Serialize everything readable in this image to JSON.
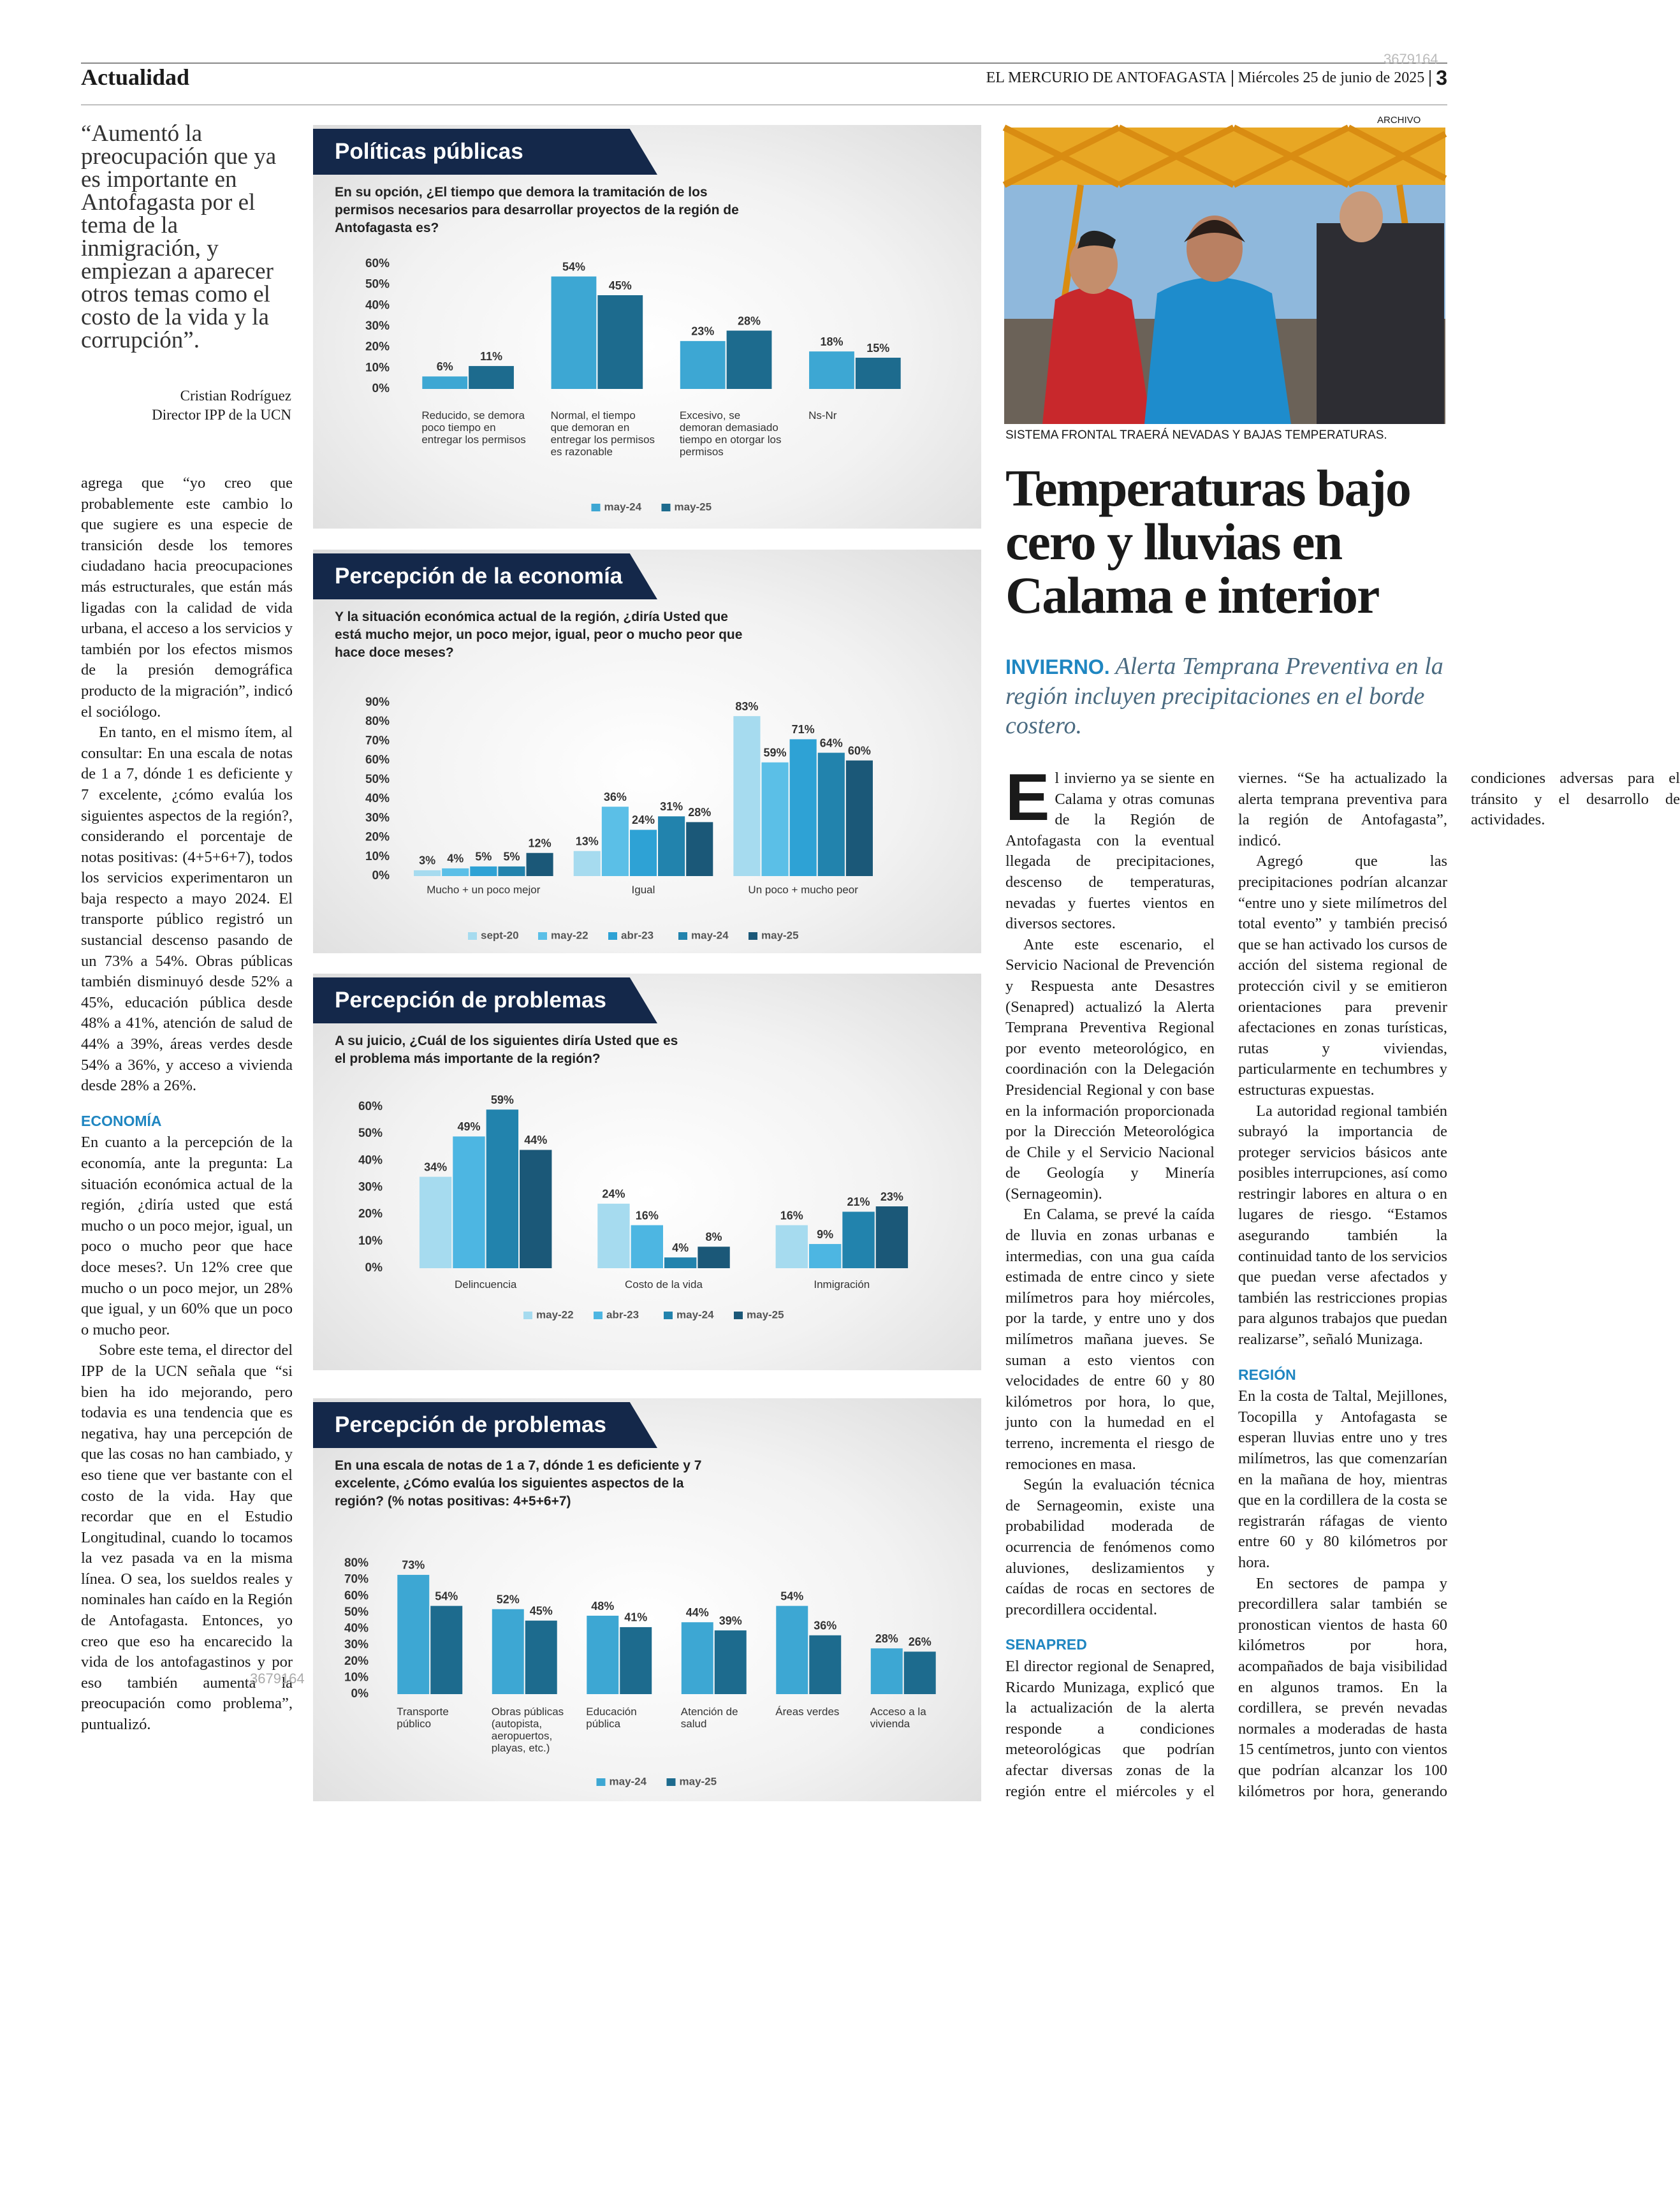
{
  "header": {
    "section": "Actualidad",
    "paper": "EL MERCURIO DE ANTOFAGASTA",
    "date": "Miércoles 25 de junio de 2025",
    "page": "3"
  },
  "watermarks": [
    "3679164",
    "3679164"
  ],
  "quote": {
    "text": "“Aumentó la preocupación que ya es importante en Antofagasta por el tema de la inmigración, y empiezan a aparecer otros temas como el costo de la vida y la corrupción”.",
    "author": "Cristian Rodríguez",
    "role": "Director IPP de la UCN"
  },
  "left_body": {
    "paragraphs_1": [
      "agrega que “yo creo que probablemente este cambio lo que sugiere es una especie de transición desde los temores ciudadano hacia preocupaciones más estructurales, que están más ligadas con la calidad de vida urbana, el acceso a los servicios y también por los efectos mismos de la presión demográfica producto de la migración”, indicó el sociólogo.",
      "En tanto, en el mismo ítem, al consultar: En una escala de notas de 1 a 7, dónde 1 es deficiente y 7 excelente, ¿cómo evalúa los siguientes aspectos de la región?, considerando el porcentaje de notas positivas: (4+5+6+7), todos los servicios experimentaron un baja respecto a mayo 2024. El transporte público registró un sustancial descenso pasando de un 73% a 54%. Obras públicas también disminuyó desde 52% a 45%, educación pública desde 48% a 41%, atención de salud de 44% a 39%, áreas verdes desde 54% a 36%, y acceso a vivienda desde 28% a 26%."
    ],
    "heading": "ECONOMÍA",
    "paragraphs_2": [
      "En cuanto a la percepción de la economía, ante la pregunta: La situación económica actual de la región, ¿diría usted que está mucho o un poco mejor, igual, un poco o mucho peor que hace doce meses?. Un 12% cree que mucho o un poco mejor, un 28% que igual, y un 60% que un poco o mucho peor.",
      "Sobre este tema, el director del IPP de la UCN señala que “si bien ha ido mejorando, pero todavia es una tendencia que es negativa, hay una percepción de que las cosas no han cambiado, y eso tiene que ver bastante con el costo de la vida. Hay que recordar que en el Estudio Longitudinal, cuando lo tocamos la vez pasada va en la misma línea. O sea, los sueldos reales y nominales han caído en la Región de Antofagasta. Entonces, yo creo que eso ha encarecido la vida de los antofagastinos y por eso también aumenta la preocupación como problema”, puntualizó."
    ]
  },
  "chart_data": [
    {
      "type": "bar",
      "title": "Políticas públicas",
      "question": "En su opción, ¿El tiempo que demora la tramitación de los permisos necesarios para desarrollar proyectos de la región de Antofagasta es?",
      "categories": [
        "Reducido, se demora poco tiempo en entregar los permisos",
        "Normal, el tiempo que demoran en entregar los permisos es razonable",
        "Excesivo, se demoran demasiado tiempo en otorgar los permisos",
        "Ns-Nr"
      ],
      "series": [
        {
          "name": "may-24",
          "color": "#3da7d3",
          "values": [
            6,
            54,
            23,
            18
          ],
          "value_labels": [
            "6%",
            "54%",
            "23%",
            "18%"
          ]
        },
        {
          "name": "may-25",
          "color": "#1d6b8e",
          "values": [
            11,
            45,
            28,
            15
          ],
          "value_labels": [
            "11%",
            "45%",
            "28%",
            "15%"
          ]
        }
      ],
      "ylim": [
        0,
        60
      ],
      "yticks": [
        {
          "value": 0,
          "label": "0%"
        },
        {
          "value": 10,
          "label": "10%"
        },
        {
          "value": 20,
          "label": "20%"
        },
        {
          "value": 30,
          "label": "30%"
        },
        {
          "value": 40,
          "label": "40%"
        },
        {
          "value": 50,
          "label": "50%"
        },
        {
          "value": 60,
          "label": "60%"
        }
      ]
    },
    {
      "type": "bar",
      "title": "Percepción de la economía",
      "question": "Y la situación económica actual de la región, ¿diría Usted que está mucho mejor, un poco mejor, igual, peor o mucho peor que hace doce meses?",
      "categories": [
        "Mucho + un poco mejor",
        "Igual",
        "Un poco + mucho peor"
      ],
      "series": [
        {
          "name": "sept-20",
          "color": "#a6dbef",
          "values": [
            3,
            13,
            83
          ],
          "value_labels": [
            "3%",
            "13%",
            "83%"
          ]
        },
        {
          "name": "may-22",
          "color": "#5bbfe7",
          "values": [
            4,
            36,
            59
          ],
          "value_labels": [
            "4%",
            "36%",
            "59%"
          ]
        },
        {
          "name": "abr-23",
          "color": "#2ea2d5",
          "values": [
            5,
            24,
            71
          ],
          "value_labels": [
            "5%",
            "24%",
            "71%"
          ]
        },
        {
          "name": "may-24",
          "color": "#2283ad",
          "values": [
            5,
            31,
            64
          ],
          "value_labels": [
            "5%",
            "31%",
            "64%"
          ]
        },
        {
          "name": "may-25",
          "color": "#1b5878",
          "values": [
            12,
            28,
            60
          ],
          "value_labels": [
            "12%",
            "28%",
            "60%"
          ]
        }
      ],
      "ylim": [
        0,
        90
      ],
      "yticks": [
        {
          "value": 0,
          "label": "0%"
        },
        {
          "value": 10,
          "label": "10%"
        },
        {
          "value": 20,
          "label": "20%"
        },
        {
          "value": 30,
          "label": "30%"
        },
        {
          "value": 40,
          "label": "40%"
        },
        {
          "value": 50,
          "label": "50%"
        },
        {
          "value": 60,
          "label": "60%"
        },
        {
          "value": 70,
          "label": "70%"
        },
        {
          "value": 80,
          "label": "80%"
        },
        {
          "value": 90,
          "label": "90%"
        }
      ]
    },
    {
      "type": "bar",
      "title": "Percepción de problemas",
      "question": "A su juicio, ¿Cuál de los siguientes diría Usted que es el problema más importante de la región?",
      "categories": [
        "Delincuencia",
        "Costo de la vida",
        "Inmigración"
      ],
      "series": [
        {
          "name": "may-22",
          "color": "#a6dbef",
          "values": [
            34,
            24,
            16
          ],
          "value_labels": [
            "34%",
            "24%",
            "16%"
          ]
        },
        {
          "name": "abr-23",
          "color": "#4db6e2",
          "values": [
            49,
            16,
            9
          ],
          "value_labels": [
            "49%",
            "16%",
            "9%"
          ]
        },
        {
          "name": "may-24",
          "color": "#2283ad",
          "values": [
            59,
            4,
            21
          ],
          "value_labels": [
            "59%",
            "4%",
            "21%"
          ]
        },
        {
          "name": "may-25",
          "color": "#1b5878",
          "values": [
            44,
            8,
            23
          ],
          "value_labels": [
            "44%",
            "8%",
            "23%"
          ]
        }
      ],
      "ylim": [
        0,
        60
      ],
      "yticks": [
        {
          "value": 0,
          "label": "0%"
        },
        {
          "value": 10,
          "label": "10%"
        },
        {
          "value": 20,
          "label": "20%"
        },
        {
          "value": 30,
          "label": "30%"
        },
        {
          "value": 40,
          "label": "40%"
        },
        {
          "value": 50,
          "label": "50%"
        },
        {
          "value": 60,
          "label": "60%"
        }
      ]
    },
    {
      "type": "bar",
      "title": "Percepción de problemas",
      "question": "En una escala de notas de 1 a 7, dónde 1 es deficiente y 7 excelente, ¿Cómo evalúa los siguientes aspectos de la región? (% notas positivas: 4+5+6+7)",
      "categories": [
        "Transporte público",
        "Obras públicas (autopista, aeropuertos, playas, etc.)",
        "Educación pública",
        "Atención de salud",
        "Áreas verdes",
        "Acceso a la vivienda"
      ],
      "series": [
        {
          "name": "may-24",
          "color": "#3da7d3",
          "values": [
            73,
            52,
            48,
            44,
            54,
            28
          ],
          "value_labels": [
            "73%",
            "52%",
            "48%",
            "44%",
            "54%",
            "28%"
          ]
        },
        {
          "name": "may-25",
          "color": "#1d6b8e",
          "values": [
            54,
            45,
            41,
            39,
            36,
            26
          ],
          "value_labels": [
            "54%",
            "45%",
            "41%",
            "39%",
            "36%",
            "26%"
          ]
        }
      ],
      "ylim": [
        0,
        80
      ],
      "yticks": [
        {
          "value": 0,
          "label": "0%"
        },
        {
          "value": 10,
          "label": "10%"
        },
        {
          "value": 20,
          "label": "20%"
        },
        {
          "value": 30,
          "label": "30%"
        },
        {
          "value": 40,
          "label": "40%"
        },
        {
          "value": 50,
          "label": "50%"
        },
        {
          "value": 60,
          "label": "60%"
        },
        {
          "value": 70,
          "label": "70%"
        },
        {
          "value": 80,
          "label": "80%"
        }
      ]
    }
  ],
  "article": {
    "credit": "ARCHIVO",
    "caption": "SISTEMA FRONTAL TRAERÁ NEVADAS Y BAJAS TEMPERATURAS.",
    "headline": "Temperaturas bajo cero y lluvias en Calama e interior",
    "kicker": "INVIERNO.",
    "deck": "Alerta Temprana Preventiva en la región incluyen precipitaciones en el borde costero.",
    "sections": [
      {
        "paragraphs": [
          "El invierno ya se siente en Calama y otras comunas de la Región de Antofagasta con la eventual llegada de precipitaciones, descenso de temperaturas, nevadas y fuertes vientos en diversos sectores.",
          "Ante este escenario, el Servicio Nacional de Prevención y Respuesta ante Desastres (Senapred) actualizó la Alerta Temprana Preventiva Regional por evento meteorológico, en coordinación con la Delegación Presidencial Regional y con base en la información proporcionada por la Dirección Meteorológica de Chile y el Servicio Nacional de Geología y Minería (Sernageomin).",
          "En Calama, se prevé la caída de lluvia en zonas urbanas e intermedias, con una gua caída estimada de entre cinco y siete milímetros para hoy miércoles, por la tarde, y entre uno y dos milímetros mañana jueves. Se suman a esto vientos con velocidades de entre 60 y 80 kilómetros por hora, lo que, junto con la humedad en el terreno, incrementa el riesgo de remociones en masa.",
          "Según la evaluación técnica de Sernageomin, existe una probabilidad moderada de ocurrencia de fenómenos como aluviones, deslizamientos y caídas de rocas en sectores de precordillera occidental."
        ]
      },
      {
        "heading": "SENAPRED",
        "paragraphs": [
          "El director regional de Senapred, Ricardo Munizaga, explicó que la actualización de la alerta responde a condiciones meteorológicas que podrían afectar diversas zonas de la región entre el miércoles y el viernes. “Se ha actualizado la alerta temprana preventiva para la región de Antofagasta”, indicó.",
          "Agregó que las precipitaciones podrían alcanzar “entre uno y siete milímetros del total evento” y también precisó que se han activado los cursos de acción del sistema regional de protección civil y se emitieron orientaciones para prevenir afectaciones en zonas turísticas, rutas y viviendas, particularmente en techumbres y estructuras expuestas.",
          "La autoridad regional también subrayó la importancia de proteger servicios básicos ante posibles interrupciones, así como restringir labores en altura o en lugares de riesgo. “Estamos asegurando también la continuidad tanto de los servicios que puedan verse afectados y también las restricciones propias para algunos trabajos que puedan realizarse”, señaló Munizaga."
        ]
      },
      {
        "heading": "REGIÓN",
        "paragraphs": [
          "En la costa de Taltal, Mejillones, Tocopilla y Antofagasta se esperan lluvias entre uno y tres milímetros, las que comenzarían en la mañana de hoy, mientras que en la cordillera de la costa se registrarán ráfagas de viento entre 60 y 80 kilómetros por hora.",
          "En sectores de pampa y precordillera salar también se pronostican vientos de hasta 60 kilómetros por hora, acompañados de baja visibilidad en algunos tramos. En la cordillera, se prevén nevadas normales a moderadas de hasta 15 centímetros, junto con vientos que podrían alcanzar los 100 kilómetros por hora, generando condiciones adversas para el tránsito y el desarrollo de actividades."
        ]
      }
    ]
  }
}
